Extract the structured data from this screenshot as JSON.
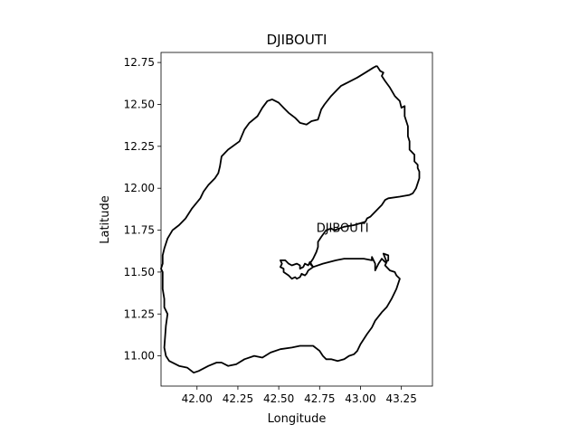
{
  "figure": {
    "title": "DJIBOUTI",
    "xlabel": "Longitude",
    "ylabel": "Latitude",
    "map_label": "DJIBOUTI",
    "map_label_coord": [
      42.73,
      11.74
    ],
    "xlim": [
      41.78,
      43.44
    ],
    "ylim": [
      10.82,
      12.81
    ],
    "x_ticks": [
      42.0,
      42.25,
      42.5,
      42.75,
      43.0,
      43.25
    ],
    "x_tick_labels": [
      "42.00",
      "42.25",
      "42.50",
      "42.75",
      "43.00",
      "43.25"
    ],
    "y_ticks": [
      11.0,
      11.25,
      11.5,
      11.75,
      12.0,
      12.25,
      12.5,
      12.75
    ],
    "y_tick_labels": [
      "11.00",
      "11.25",
      "11.50",
      "11.75",
      "12.00",
      "12.25",
      "12.50",
      "12.75"
    ],
    "line_color": "#000000",
    "boundary": [
      [
        43.1,
        12.73
      ],
      [
        43.12,
        12.7
      ],
      [
        43.14,
        12.69
      ],
      [
        43.13,
        12.67
      ],
      [
        43.15,
        12.64
      ],
      [
        43.18,
        12.6
      ],
      [
        43.21,
        12.55
      ],
      [
        43.24,
        12.52
      ],
      [
        43.25,
        12.48
      ],
      [
        43.27,
        12.49
      ],
      [
        43.27,
        12.43
      ],
      [
        43.29,
        12.37
      ],
      [
        43.29,
        12.31
      ],
      [
        43.3,
        12.28
      ],
      [
        43.3,
        12.23
      ],
      [
        43.33,
        12.2
      ],
      [
        43.33,
        12.16
      ],
      [
        43.35,
        12.14
      ],
      [
        43.35,
        12.12
      ],
      [
        43.36,
        12.1
      ],
      [
        43.36,
        12.06
      ],
      [
        43.34,
        12.0
      ],
      [
        43.32,
        11.97
      ],
      [
        43.3,
        11.96
      ],
      [
        43.24,
        11.95
      ],
      [
        43.17,
        11.94
      ],
      [
        43.15,
        11.93
      ],
      [
        43.13,
        11.9
      ],
      [
        43.11,
        11.88
      ],
      [
        43.06,
        11.83
      ],
      [
        43.04,
        11.82
      ],
      [
        43.03,
        11.8
      ],
      [
        42.96,
        11.78
      ],
      [
        42.9,
        11.77
      ],
      [
        42.84,
        11.75
      ],
      [
        42.82,
        11.76
      ],
      [
        42.79,
        11.75
      ],
      [
        42.76,
        11.71
      ],
      [
        42.74,
        11.68
      ],
      [
        42.74,
        11.65
      ],
      [
        42.73,
        11.62
      ],
      [
        42.71,
        11.58
      ],
      [
        42.69,
        11.55
      ],
      [
        42.71,
        11.53
      ],
      [
        42.77,
        11.55
      ],
      [
        42.85,
        11.57
      ],
      [
        42.9,
        11.58
      ],
      [
        42.96,
        11.58
      ],
      [
        43.02,
        11.58
      ],
      [
        43.07,
        11.57
      ],
      [
        43.07,
        11.59
      ],
      [
        43.09,
        11.55
      ],
      [
        43.09,
        11.51
      ],
      [
        43.11,
        11.55
      ],
      [
        43.13,
        11.58
      ],
      [
        43.15,
        11.56
      ],
      [
        43.17,
        11.57
      ],
      [
        43.17,
        11.6
      ],
      [
        43.14,
        11.61
      ],
      [
        43.16,
        11.56
      ],
      [
        43.15,
        11.54
      ],
      [
        43.18,
        11.51
      ],
      [
        43.21,
        11.5
      ],
      [
        43.22,
        11.48
      ],
      [
        43.24,
        11.46
      ],
      [
        43.22,
        11.4
      ],
      [
        43.19,
        11.34
      ],
      [
        43.16,
        11.29
      ],
      [
        43.13,
        11.26
      ],
      [
        43.09,
        11.21
      ],
      [
        43.07,
        11.17
      ],
      [
        43.04,
        11.13
      ],
      [
        43.0,
        11.07
      ],
      [
        42.98,
        11.03
      ],
      [
        42.96,
        11.01
      ],
      [
        42.93,
        11.0
      ],
      [
        42.9,
        10.98
      ],
      [
        42.86,
        10.97
      ],
      [
        42.82,
        10.98
      ],
      [
        42.79,
        10.98
      ],
      [
        42.77,
        11.0
      ],
      [
        42.75,
        11.03
      ],
      [
        42.71,
        11.06
      ],
      [
        42.68,
        11.06
      ],
      [
        42.63,
        11.06
      ],
      [
        42.58,
        11.05
      ],
      [
        42.51,
        11.04
      ],
      [
        42.45,
        11.02
      ],
      [
        42.4,
        10.99
      ],
      [
        42.35,
        11.0
      ],
      [
        42.29,
        10.98
      ],
      [
        42.24,
        10.95
      ],
      [
        42.19,
        10.94
      ],
      [
        42.15,
        10.96
      ],
      [
        42.12,
        10.96
      ],
      [
        42.07,
        10.94
      ],
      [
        42.01,
        10.91
      ],
      [
        41.98,
        10.9
      ],
      [
        41.94,
        10.93
      ],
      [
        41.89,
        10.94
      ],
      [
        41.83,
        10.97
      ],
      [
        41.81,
        11.0
      ],
      [
        41.8,
        11.05
      ],
      [
        41.81,
        11.18
      ],
      [
        41.82,
        11.25
      ],
      [
        41.8,
        11.29
      ],
      [
        41.8,
        11.34
      ],
      [
        41.79,
        11.4
      ],
      [
        41.79,
        11.45
      ],
      [
        41.79,
        11.5
      ],
      [
        41.78,
        11.52
      ],
      [
        41.79,
        11.55
      ],
      [
        41.79,
        11.6
      ],
      [
        41.8,
        11.64
      ],
      [
        41.82,
        11.7
      ],
      [
        41.85,
        11.75
      ],
      [
        41.89,
        11.78
      ],
      [
        41.93,
        11.82
      ],
      [
        41.97,
        11.88
      ],
      [
        42.02,
        11.94
      ],
      [
        42.04,
        11.98
      ],
      [
        42.07,
        12.02
      ],
      [
        42.11,
        12.06
      ],
      [
        42.13,
        12.09
      ],
      [
        42.14,
        12.13
      ],
      [
        42.15,
        12.19
      ],
      [
        42.19,
        12.23
      ],
      [
        42.26,
        12.28
      ],
      [
        42.29,
        12.35
      ],
      [
        42.32,
        12.39
      ],
      [
        42.37,
        12.43
      ],
      [
        42.4,
        12.48
      ],
      [
        42.43,
        12.52
      ],
      [
        42.46,
        12.53
      ],
      [
        42.5,
        12.51
      ],
      [
        42.53,
        12.48
      ],
      [
        42.56,
        12.45
      ],
      [
        42.6,
        12.42
      ],
      [
        42.63,
        12.39
      ],
      [
        42.67,
        12.38
      ],
      [
        42.7,
        12.4
      ],
      [
        42.74,
        12.41
      ],
      [
        42.76,
        12.47
      ],
      [
        42.78,
        12.5
      ],
      [
        42.82,
        12.55
      ],
      [
        42.86,
        12.59
      ],
      [
        42.88,
        12.61
      ],
      [
        42.92,
        12.63
      ],
      [
        42.98,
        12.66
      ],
      [
        43.03,
        12.69
      ],
      [
        43.08,
        12.72
      ],
      [
        43.1,
        12.73
      ]
    ],
    "inlet": [
      [
        42.71,
        11.53
      ],
      [
        42.68,
        11.51
      ],
      [
        42.67,
        11.49
      ],
      [
        42.66,
        11.48
      ],
      [
        42.64,
        11.49
      ],
      [
        42.63,
        11.47
      ],
      [
        42.61,
        11.46
      ],
      [
        42.6,
        11.47
      ],
      [
        42.58,
        11.46
      ],
      [
        42.56,
        11.48
      ],
      [
        42.53,
        11.5
      ],
      [
        42.53,
        11.52
      ],
      [
        42.51,
        11.53
      ],
      [
        42.52,
        11.55
      ],
      [
        42.51,
        11.57
      ],
      [
        42.54,
        11.57
      ],
      [
        42.56,
        11.55
      ],
      [
        42.58,
        11.54
      ],
      [
        42.61,
        11.55
      ],
      [
        42.63,
        11.54
      ],
      [
        42.63,
        11.52
      ],
      [
        42.65,
        11.53
      ],
      [
        42.66,
        11.55
      ],
      [
        42.68,
        11.54
      ],
      [
        42.69,
        11.56
      ],
      [
        42.71,
        11.53
      ]
    ]
  }
}
